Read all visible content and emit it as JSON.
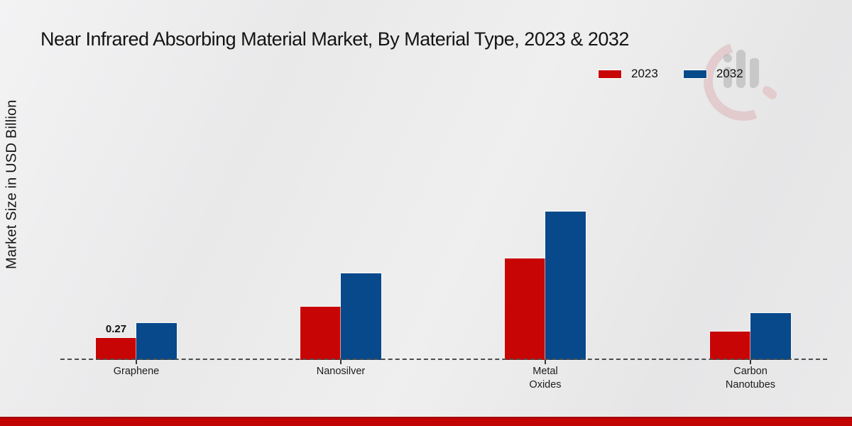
{
  "title": "Near Infrared Absorbing Material Market, By Material Type, 2023 & 2032",
  "y_axis_label": "Market Size in USD Billion",
  "colors": {
    "series_2023": "#c80505",
    "series_2032": "#07498b",
    "bottom_bar": "#c20404",
    "background": "#e9e9ea",
    "axis_dash": "#4d4d4d"
  },
  "watermark": "brand-logo-watermark",
  "chart_data": {
    "type": "bar",
    "title": "Near Infrared Absorbing Material Market, By Material Type, 2023 & 2032",
    "xlabel": "",
    "ylabel": "Market Size in USD Billion",
    "unit": "USD Billion",
    "categories": [
      "Graphene",
      "Nanosilver",
      "Metal Oxides",
      "Carbon Nanotubes"
    ],
    "category_lines": [
      [
        "Graphene"
      ],
      [
        "Nanosilver"
      ],
      [
        "Metal",
        "Oxides"
      ],
      [
        "Carbon",
        "Nanotubes"
      ]
    ],
    "series": [
      {
        "name": "2023",
        "color": "#c80505",
        "values": [
          0.27,
          0.65,
          1.24,
          0.35
        ],
        "data_labels": [
          "0.27",
          "",
          "",
          ""
        ]
      },
      {
        "name": "2032",
        "color": "#07498b",
        "values": [
          0.45,
          1.06,
          1.82,
          0.57
        ],
        "data_labels": [
          "",
          "",
          "",
          ""
        ]
      }
    ],
    "legend_position": "top-right",
    "grid": false,
    "baseline_style": "dashed",
    "annotations": [
      "0.27"
    ]
  }
}
